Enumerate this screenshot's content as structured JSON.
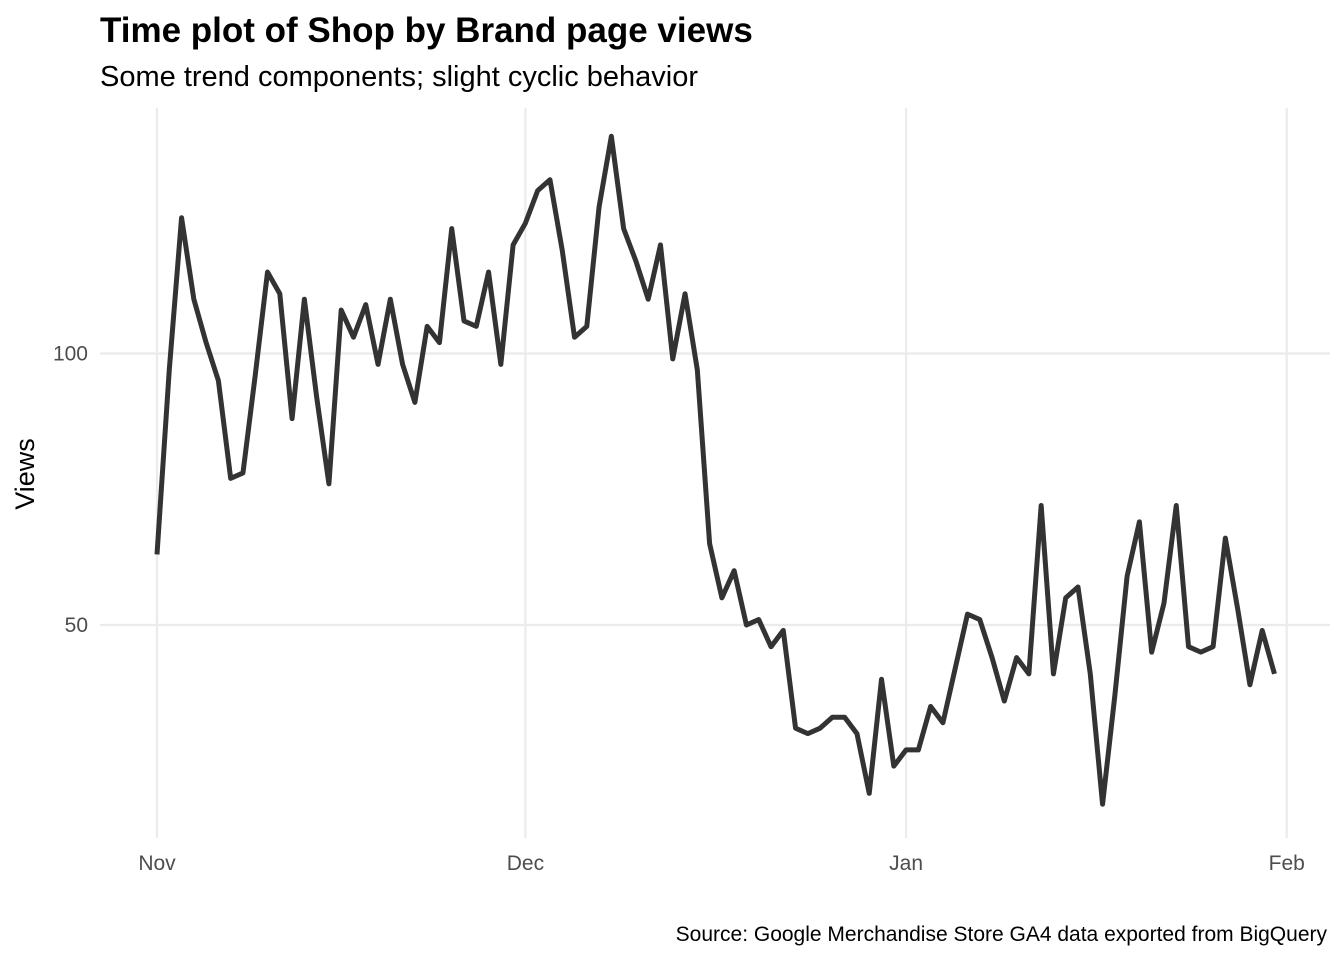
{
  "chart_data": {
    "type": "line",
    "title": "Time plot of Shop by Brand page views",
    "subtitle": "Some trend components; slight cyclic behavior",
    "xlabel": "",
    "ylabel": "Views",
    "caption": "Source: Google Merchandise Store GA4 data exported from BigQuery",
    "x_ticks": [
      {
        "date": "2020-11-01",
        "label": "Nov"
      },
      {
        "date": "2020-12-01",
        "label": "Dec"
      },
      {
        "date": "2021-01-01",
        "label": "Jan"
      },
      {
        "date": "2021-02-01",
        "label": "Feb"
      }
    ],
    "y_ticks": [
      50,
      100
    ],
    "xlim": [
      "2020-11-01",
      "2021-01-31"
    ],
    "ylim": [
      20,
      140
    ],
    "grid": true,
    "line_color": "#333333",
    "series": [
      {
        "x": [
          "2020-11-01",
          "2020-11-02",
          "2020-11-03",
          "2020-11-04",
          "2020-11-05",
          "2020-11-06",
          "2020-11-07",
          "2020-11-08",
          "2020-11-09",
          "2020-11-10",
          "2020-11-11",
          "2020-11-12",
          "2020-11-13",
          "2020-11-14",
          "2020-11-15",
          "2020-11-16",
          "2020-11-17",
          "2020-11-18",
          "2020-11-19",
          "2020-11-20",
          "2020-11-21",
          "2020-11-22",
          "2020-11-23",
          "2020-11-24",
          "2020-11-25",
          "2020-11-26",
          "2020-11-27",
          "2020-11-28",
          "2020-11-29",
          "2020-11-30",
          "2020-12-01",
          "2020-12-02",
          "2020-12-03",
          "2020-12-04",
          "2020-12-05",
          "2020-12-06",
          "2020-12-07",
          "2020-12-08",
          "2020-12-09",
          "2020-12-10",
          "2020-12-11",
          "2020-12-12",
          "2020-12-13",
          "2020-12-14",
          "2020-12-15",
          "2020-12-16",
          "2020-12-17",
          "2020-12-18",
          "2020-12-19",
          "2020-12-20",
          "2020-12-21",
          "2020-12-22",
          "2020-12-23",
          "2020-12-24",
          "2020-12-25",
          "2020-12-26",
          "2020-12-27",
          "2020-12-28",
          "2020-12-29",
          "2020-12-30",
          "2020-12-31",
          "2021-01-01",
          "2021-01-02",
          "2021-01-03",
          "2021-01-04",
          "2021-01-05",
          "2021-01-06",
          "2021-01-07",
          "2021-01-08",
          "2021-01-09",
          "2021-01-10",
          "2021-01-11",
          "2021-01-12",
          "2021-01-13",
          "2021-01-14",
          "2021-01-15",
          "2021-01-16",
          "2021-01-17",
          "2021-01-18",
          "2021-01-19",
          "2021-01-20",
          "2021-01-21",
          "2021-01-22",
          "2021-01-23",
          "2021-01-24",
          "2021-01-25",
          "2021-01-26",
          "2021-01-27",
          "2021-01-28",
          "2021-01-29",
          "2021-01-30",
          "2021-01-31"
        ],
        "y": [
          63,
          97,
          125,
          110,
          102,
          95,
          77,
          78,
          96,
          115,
          111,
          88,
          110,
          92,
          76,
          108,
          103,
          109,
          98,
          110,
          98,
          91,
          105,
          102,
          123,
          106,
          105,
          115,
          98,
          120,
          124,
          130,
          132,
          119,
          103,
          105,
          127,
          140,
          123,
          117,
          110,
          120,
          99,
          111,
          97,
          65,
          55,
          60,
          50,
          51,
          46,
          49,
          31,
          30,
          31,
          33,
          33,
          30,
          19,
          40,
          24,
          27,
          27,
          35,
          32,
          42,
          52,
          51,
          44,
          36,
          44,
          41,
          72,
          41,
          55,
          57,
          41,
          17,
          37,
          59,
          69,
          45,
          54,
          72,
          46,
          45,
          46,
          66,
          53,
          39,
          49,
          41
        ]
      }
    ]
  }
}
